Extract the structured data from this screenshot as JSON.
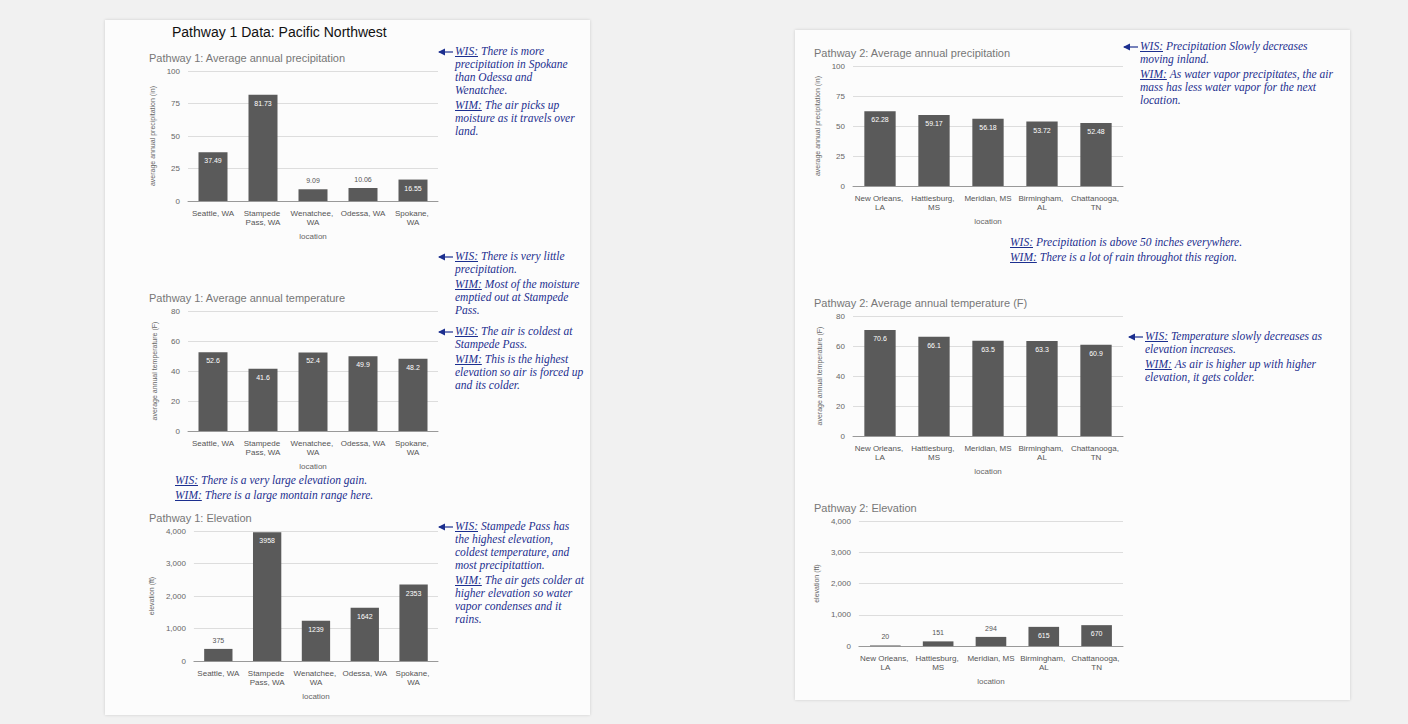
{
  "header": {
    "title": "Pathway 1 Data: Pacific Northwest"
  },
  "chart_data": [
    {
      "type": "bar",
      "title": "Pathway 1: Average annual precipitation",
      "xlabel": "location",
      "ylabel": "average annual precipitation (in)",
      "categories": [
        "Seattle, WA",
        "Stampede Pass, WA",
        "Wenatchee, WA",
        "Odessa, WA",
        "Spokane, WA"
      ],
      "values": [
        37.49,
        81.73,
        9.09,
        10.06,
        16.55
      ],
      "color": "#5a5a5a",
      "ylim": [
        0,
        100
      ],
      "yticks": [
        0,
        25,
        50,
        75,
        100
      ],
      "grid": true,
      "data_labels": true,
      "annotations": [
        {
          "notes": [
            {
              "tag": "WIS:",
              "text": "There is more precipitation in Spokane than Odessa and Wenatchee."
            },
            {
              "tag": "WIM:",
              "text": "The air picks up moisture as it travels over land."
            }
          ]
        },
        {
          "notes": [
            {
              "tag": "WIS:",
              "text": "There is very little precipitation."
            },
            {
              "tag": "WIM:",
              "text": "Most of the moisture emptied out at Stampede Pass."
            }
          ]
        }
      ]
    },
    {
      "type": "bar",
      "title": "Pathway 1: Average annual temperature",
      "xlabel": "location",
      "ylabel": "average annual temperature (F)",
      "categories": [
        "Seattle, WA",
        "Stampede Pass, WA",
        "Wenatchee, WA",
        "Odessa, WA",
        "Spokane, WA"
      ],
      "values": [
        52.6,
        41.6,
        52.4,
        49.9,
        48.2
      ],
      "color": "#5a5a5a",
      "ylim": [
        0,
        80
      ],
      "yticks": [
        0,
        20,
        40,
        60,
        80
      ],
      "grid": true,
      "data_labels": true,
      "annotations": [
        {
          "notes": [
            {
              "tag": "WIS:",
              "text": "The air is coldest at Stampede Pass."
            },
            {
              "tag": "WIM:",
              "text": "This is the highest elevation so air is forced up and its colder."
            }
          ]
        }
      ]
    },
    {
      "type": "bar",
      "title": "Pathway 1: Elevation",
      "xlabel": "location",
      "ylabel": "elevation (ft)",
      "categories": [
        "Seattle, WA",
        "Stampede Pass, WA",
        "Wenatchee, WA",
        "Odessa, WA",
        "Spokane, WA"
      ],
      "values": [
        375,
        3958,
        1239,
        1642,
        2353
      ],
      "color": "#5a5a5a",
      "ylim": [
        0,
        4000
      ],
      "yticks": [
        0,
        1000,
        2000,
        3000,
        4000
      ],
      "grid": true,
      "data_labels": true,
      "annotations": [
        {
          "notes": [
            {
              "tag": "WIS:",
              "text": "There is a very large elevation gain."
            },
            {
              "tag": "WIM:",
              "text": "There is a large montain range here."
            }
          ]
        },
        {
          "notes": [
            {
              "tag": "WIS:",
              "text": "Stampede Pass has the highest elevation, coldest temperature, and most precipitattion."
            },
            {
              "tag": "WIM:",
              "text": "The air gets colder at higher elevation so water vapor condenses and it rains."
            }
          ]
        }
      ]
    },
    {
      "type": "bar",
      "title": "Pathway 2: Average annual precipitation",
      "xlabel": "location",
      "ylabel": "average annual precipitation (in)",
      "categories": [
        "New Orleans, LA",
        "Hattiesburg, MS",
        "Meridian, MS",
        "Birmingham, AL",
        "Chattanooga, TN"
      ],
      "values": [
        62.28,
        59.17,
        56.18,
        53.72,
        52.48
      ],
      "color": "#5a5a5a",
      "ylim": [
        0,
        100
      ],
      "yticks": [
        0,
        25,
        50,
        75,
        100
      ],
      "grid": true,
      "data_labels": true,
      "annotations": [
        {
          "notes": [
            {
              "tag": "WIS:",
              "text": "Precipitation Slowly decreases moving inland."
            },
            {
              "tag": "WIM:",
              "text": "As water vapor precipitates, the air mass has less water vapor for the next location."
            }
          ]
        },
        {
          "notes": [
            {
              "tag": "WIS:",
              "text": "Precipitation is above 50 inches everywhere."
            },
            {
              "tag": "WIM:",
              "text": "There is a lot of rain throughot this region."
            }
          ]
        }
      ]
    },
    {
      "type": "bar",
      "title": "Pathway 2: Average annual temperature (F)",
      "xlabel": "location",
      "ylabel": "average annual temperature (F)",
      "categories": [
        "New Orleans, LA",
        "Hattiesburg, MS",
        "Meridian, MS",
        "Birmingham, AL",
        "Chattanooga, TN"
      ],
      "values": [
        70.6,
        66.1,
        63.5,
        63.3,
        60.9
      ],
      "color": "#5a5a5a",
      "ylim": [
        0,
        80
      ],
      "yticks": [
        0,
        20,
        40,
        60,
        80
      ],
      "grid": true,
      "data_labels": true,
      "annotations": [
        {
          "notes": [
            {
              "tag": "WIS:",
              "text": "Temperature slowly decreases as elevation increases."
            },
            {
              "tag": "WIM:",
              "text": "As air is higher up with higher elevation, it gets colder."
            }
          ]
        }
      ]
    },
    {
      "type": "bar",
      "title": "Pathway 2: Elevation",
      "xlabel": "location",
      "ylabel": "elevation (ft)",
      "categories": [
        "New Orleans, LA",
        "Hattiesburg, MS",
        "Meridian, MS",
        "Birmingham, AL",
        "Chattanooga, TN"
      ],
      "values": [
        20,
        151,
        294,
        615,
        670
      ],
      "color": "#5a5a5a",
      "ylim": [
        0,
        4000
      ],
      "yticks": [
        0,
        1000,
        2000,
        3000,
        4000
      ],
      "grid": true,
      "data_labels": true,
      "annotations": []
    }
  ]
}
